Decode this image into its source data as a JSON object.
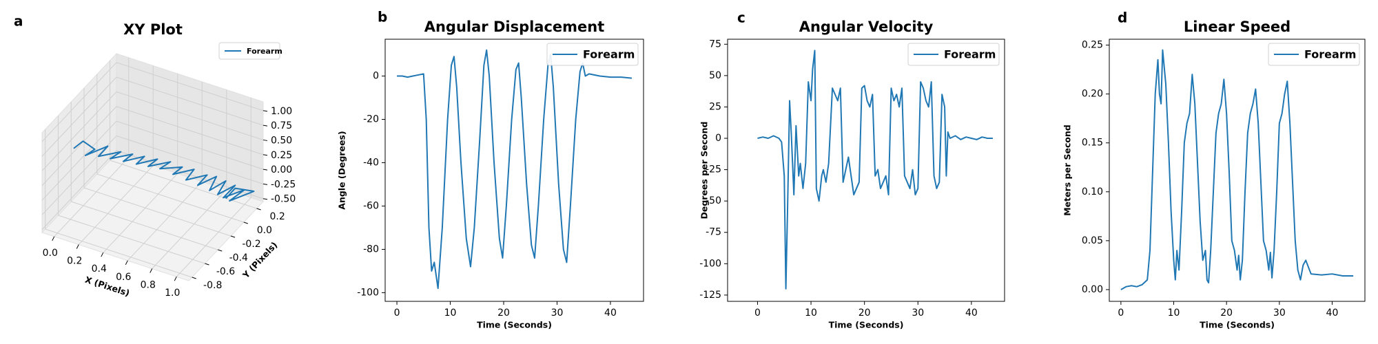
{
  "chart_data": [
    {
      "type": "line3d",
      "panel": "a",
      "title": "XY Plot",
      "xlabel": "X (Pixels)",
      "ylabel": "Y (Pixels)",
      "xlim": [
        -0.1,
        1.1
      ],
      "ylim": [
        -0.85,
        0.3
      ],
      "zlim": [
        -0.55,
        1.15
      ],
      "xticks": [
        {
          "value": 0,
          "label": "0.0"
        },
        0.2,
        0.4,
        0.6,
        0.8,
        {
          "value": 1,
          "label": "1.0"
        }
      ],
      "yticks": [
        -0.8,
        -0.6,
        -0.4,
        -0.2,
        {
          "value": 0,
          "label": "0.0"
        },
        0.2
      ],
      "zticks": [
        {
          "value": -0.5,
          "label": "-0.50"
        },
        {
          "value": -0.25,
          "label": "-0.25"
        },
        {
          "value": 0,
          "label": "0.00"
        },
        {
          "value": 0.25,
          "label": "0.25"
        },
        {
          "value": 0.5,
          "label": "0.50"
        },
        {
          "value": 0.75,
          "label": "0.75"
        },
        {
          "value": 1,
          "label": "1.00"
        }
      ],
      "legend": "upper right",
      "grid": true,
      "series": [
        {
          "name": "Forearm",
          "color": "#1f77b4",
          "x": [
            0.0,
            0.05,
            0.12,
            0.08,
            0.2,
            0.15,
            0.28,
            0.22,
            0.35,
            0.3,
            0.42,
            0.38,
            0.5,
            0.45,
            0.58,
            0.52,
            0.65,
            0.6,
            0.72,
            0.68,
            0.8,
            0.75,
            0.85,
            0.82,
            0.9,
            0.86,
            0.95,
            0.88,
            1.0,
            0.92,
            1.05,
            0.95,
            0.9
          ],
          "y": [
            -0.55,
            -0.5,
            -0.45,
            -0.52,
            -0.4,
            -0.45,
            -0.35,
            -0.4,
            -0.3,
            -0.35,
            -0.25,
            -0.3,
            -0.2,
            -0.25,
            -0.15,
            -0.2,
            -0.1,
            -0.15,
            -0.05,
            -0.1,
            0.0,
            -0.05,
            0.05,
            0.0,
            0.1,
            0.05,
            0.15,
            0.1,
            0.2,
            0.12,
            0.25,
            0.15,
            0.1
          ],
          "z": [
            0.6,
            0.7,
            0.55,
            0.5,
            0.6,
            0.45,
            0.5,
            0.4,
            0.45,
            0.35,
            0.4,
            0.3,
            0.35,
            0.25,
            0.3,
            0.2,
            0.2,
            0.1,
            0.15,
            0.0,
            0.05,
            -0.1,
            0.0,
            -0.2,
            -0.1,
            -0.3,
            -0.2,
            -0.4,
            -0.3,
            -0.45,
            -0.35,
            -0.25,
            -0.4
          ]
        }
      ]
    },
    {
      "type": "line",
      "panel": "b",
      "title": "Angular Displacement",
      "xlabel": "Time (Seconds)",
      "ylabel": "Angle (Degrees)",
      "xlim": [
        -2.2,
        46.2
      ],
      "ylim": [
        -104,
        17
      ],
      "xticks": [
        0,
        10,
        20,
        30,
        40
      ],
      "yticks": [
        -100,
        -80,
        -60,
        -40,
        -20,
        0
      ],
      "legend": "upper right",
      "x": [
        0,
        1,
        2,
        3,
        4,
        5,
        5.5,
        6,
        6.5,
        7,
        7.7,
        8.5,
        9.5,
        10.2,
        10.7,
        11.2,
        12,
        13,
        13.8,
        14.5,
        15.5,
        16.3,
        16.8,
        17.3,
        18.2,
        19.2,
        19.8,
        20.5,
        21.5,
        22.3,
        22.8,
        23.3,
        24.3,
        25.2,
        25.8,
        26.5,
        27.5,
        28.3,
        28.8,
        29.3,
        30.3,
        31.2,
        31.8,
        32.5,
        33.5,
        34.3,
        34.8,
        35.3,
        36,
        38,
        40,
        42,
        44
      ],
      "series": [
        {
          "name": "Forearm",
          "color": "#1f77b4",
          "values": [
            0,
            0,
            -0.5,
            0,
            0.5,
            1,
            -20,
            -70,
            -90,
            -86,
            -98,
            -70,
            -20,
            5,
            9,
            -5,
            -40,
            -75,
            -88,
            -70,
            -30,
            5,
            12,
            0,
            -40,
            -75,
            -84,
            -60,
            -20,
            3,
            6,
            -10,
            -50,
            -78,
            -84,
            -60,
            -20,
            5,
            10,
            -5,
            -50,
            -80,
            -86,
            -60,
            -20,
            2,
            6,
            0,
            1,
            0,
            -0.5,
            -0.5,
            -1
          ]
        }
      ]
    },
    {
      "type": "line",
      "panel": "c",
      "title": "Angular Velocity",
      "xlabel": "Time (Seconds)",
      "ylabel": "Degrees per Second",
      "xlim": [
        -5.6,
        46.2
      ],
      "ylim": [
        -130,
        79
      ],
      "xticks": [
        0,
        10,
        20,
        30,
        40
      ],
      "yticks": [
        -125,
        -100,
        -75,
        -50,
        -25,
        0,
        25,
        50,
        75
      ],
      "legend": "upper right",
      "x": [
        0,
        1,
        2,
        3,
        4,
        4.5,
        5,
        5.3,
        5.6,
        6,
        6.3,
        6.8,
        7.2,
        7.7,
        8,
        8.5,
        9,
        9.5,
        10,
        10.3,
        10.7,
        11,
        11.5,
        12,
        12.3,
        12.8,
        13.3,
        14,
        14.5,
        15,
        15.5,
        16,
        16.5,
        17,
        17.5,
        18,
        18.5,
        19,
        19.5,
        20,
        20.5,
        21,
        21.5,
        22,
        22.5,
        23,
        23.5,
        24,
        24.5,
        25,
        25.5,
        26,
        26.5,
        27,
        27.5,
        28,
        28.5,
        29,
        29.5,
        30,
        30.5,
        31,
        31.5,
        32,
        32.5,
        33,
        33.5,
        34,
        34.5,
        35,
        35.3,
        35.6,
        36,
        37,
        38,
        39,
        40,
        41,
        42,
        43,
        44
      ],
      "series": [
        {
          "name": "Forearm",
          "color": "#1f77b4",
          "values": [
            0,
            1,
            0,
            2,
            0,
            -3,
            -30,
            -120,
            -60,
            30,
            5,
            -45,
            10,
            -30,
            -20,
            -40,
            -20,
            45,
            30,
            55,
            70,
            -40,
            -50,
            -30,
            -25,
            -35,
            -20,
            40,
            35,
            30,
            40,
            -35,
            -25,
            -15,
            -30,
            -45,
            -40,
            -35,
            40,
            42,
            30,
            25,
            35,
            -30,
            -25,
            -40,
            -35,
            -30,
            -45,
            40,
            30,
            35,
            25,
            40,
            -30,
            -35,
            -40,
            -25,
            -45,
            -40,
            45,
            40,
            30,
            25,
            45,
            -30,
            -40,
            -35,
            35,
            25,
            -30,
            5,
            0,
            2,
            -1,
            1,
            0,
            -1,
            1,
            0,
            0
          ]
        }
      ]
    },
    {
      "type": "line",
      "panel": "d",
      "title": "Linear Speed",
      "xlabel": "Time (Seconds)",
      "ylabel": "Meters per Second",
      "xlim": [
        -2.2,
        46.2
      ],
      "ylim": [
        -0.012,
        0.256
      ],
      "xticks": [
        0,
        10,
        20,
        30,
        40
      ],
      "yticks": [
        {
          "value": 0,
          "label": "0.00"
        },
        {
          "value": 0.05,
          "label": "0.05"
        },
        {
          "value": 0.1,
          "label": "0.10"
        },
        {
          "value": 0.15,
          "label": "0.15"
        },
        {
          "value": 0.2,
          "label": "0.20"
        },
        {
          "value": 0.25,
          "label": "0.25"
        }
      ],
      "legend": "upper right",
      "x": [
        0,
        1,
        2,
        3,
        4,
        5,
        5.5,
        6,
        6.5,
        7,
        7.3,
        7.6,
        7.9,
        8.5,
        9,
        9.5,
        10,
        10.3,
        10.6,
        11,
        11.5,
        12,
        12.5,
        13,
        13.5,
        14,
        14.5,
        15,
        15.5,
        16,
        16.3,
        16.6,
        17,
        17.5,
        18,
        18.5,
        19,
        19.5,
        20,
        20.5,
        21,
        21.5,
        22,
        22.3,
        22.6,
        23,
        23.5,
        24,
        24.5,
        25,
        25.5,
        26,
        26.5,
        27,
        27.5,
        28,
        28.3,
        28.6,
        29,
        29.5,
        30,
        30.5,
        31,
        31.5,
        32,
        32.5,
        33,
        33.5,
        34,
        34.5,
        35,
        36,
        38,
        40,
        42,
        44
      ],
      "series": [
        {
          "name": "Forearm",
          "color": "#1f77b4",
          "values": [
            0,
            0.003,
            0.004,
            0.003,
            0.005,
            0.01,
            0.04,
            0.12,
            0.2,
            0.235,
            0.2,
            0.19,
            0.245,
            0.21,
            0.15,
            0.08,
            0.03,
            0.01,
            0.04,
            0.02,
            0.08,
            0.15,
            0.17,
            0.18,
            0.22,
            0.19,
            0.13,
            0.07,
            0.03,
            0.04,
            0.01,
            0.007,
            0.04,
            0.1,
            0.16,
            0.18,
            0.19,
            0.215,
            0.18,
            0.12,
            0.05,
            0.04,
            0.02,
            0.035,
            0.01,
            0.03,
            0.1,
            0.16,
            0.18,
            0.19,
            0.205,
            0.17,
            0.11,
            0.05,
            0.04,
            0.02,
            0.038,
            0.012,
            0.04,
            0.1,
            0.17,
            0.18,
            0.2,
            0.213,
            0.17,
            0.11,
            0.05,
            0.02,
            0.01,
            0.025,
            0.03,
            0.016,
            0.015,
            0.016,
            0.014,
            0.014
          ]
        }
      ]
    }
  ]
}
